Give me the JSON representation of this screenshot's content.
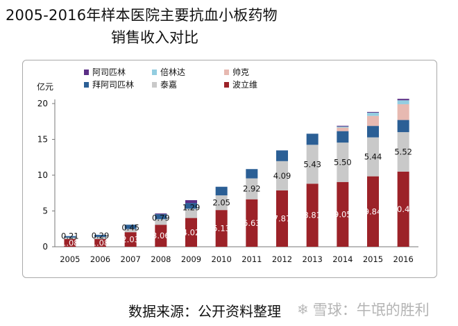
{
  "title_line1": "2005-2016年样本医院主要抗血小板药物",
  "title_line2": "销售收入对比",
  "source": "数据来源：公开资料整理",
  "watermark": "雪球：牛氓的胜利",
  "colors": {
    "阿司匹林": "#5b2f86",
    "倍林达": "#93cde0",
    "帅克": "#e7b9b1",
    "拜阿司匹林": "#2b5f95",
    "泰嘉": "#c9c9c9",
    "波立维": "#9c2228"
  },
  "chart_data": {
    "type": "bar",
    "stacked": true,
    "ylabel": "亿元",
    "ylim": [
      0,
      20
    ],
    "yticks": [
      0,
      5,
      10,
      15,
      20
    ],
    "grid": false,
    "legend_position": "top-left",
    "categories": [
      "2005",
      "2006",
      "2007",
      "2008",
      "2009",
      "2010",
      "2011",
      "2012",
      "2013",
      "2014",
      "2015",
      "2016"
    ],
    "series": [
      {
        "name": "波立维",
        "values": [
          1.08,
          1.08,
          2.03,
          3.06,
          4.02,
          5.13,
          6.63,
          7.87,
          8.81,
          9.05,
          9.84,
          10.49
        ]
      },
      {
        "name": "泰嘉",
        "values": [
          0.21,
          0.29,
          0.45,
          0.79,
          1.29,
          2.05,
          2.92,
          4.09,
          5.43,
          5.5,
          5.44,
          5.52
        ]
      },
      {
        "name": "拜阿司匹林",
        "values": [
          0.2,
          0.3,
          0.6,
          0.7,
          0.8,
          1.2,
          1.3,
          1.5,
          1.55,
          1.6,
          1.6,
          1.7
        ]
      },
      {
        "name": "帅克",
        "values": [
          0,
          0,
          0,
          0,
          0,
          0,
          0,
          0,
          0,
          0.5,
          1.4,
          2.2
        ]
      },
      {
        "name": "倍林达",
        "values": [
          0,
          0,
          0,
          0,
          0,
          0,
          0,
          0,
          0,
          0.15,
          0.45,
          0.55
        ]
      },
      {
        "name": "阿司匹林",
        "values": [
          0,
          0,
          0,
          0.1,
          0.4,
          0,
          0,
          0,
          0,
          0.1,
          0.1,
          0.2
        ]
      }
    ],
    "data_labels": {
      "波立维": [
        "1.08",
        "1.08",
        "2.03",
        "3.06",
        "4.02",
        "5.13",
        "6.63",
        "7.87",
        "8.81",
        "9.05",
        "9.84",
        "10.49"
      ],
      "泰嘉": [
        "0.21",
        "0.29",
        "0.45",
        "0.79",
        "1.29",
        "2.05",
        "2.92",
        "4.09",
        "5.43",
        "5.50",
        "5.44",
        "5.52"
      ]
    },
    "legend": [
      "阿司匹林",
      "倍林达",
      "帅克",
      "拜阿司匹林",
      "泰嘉",
      "波立维"
    ]
  }
}
